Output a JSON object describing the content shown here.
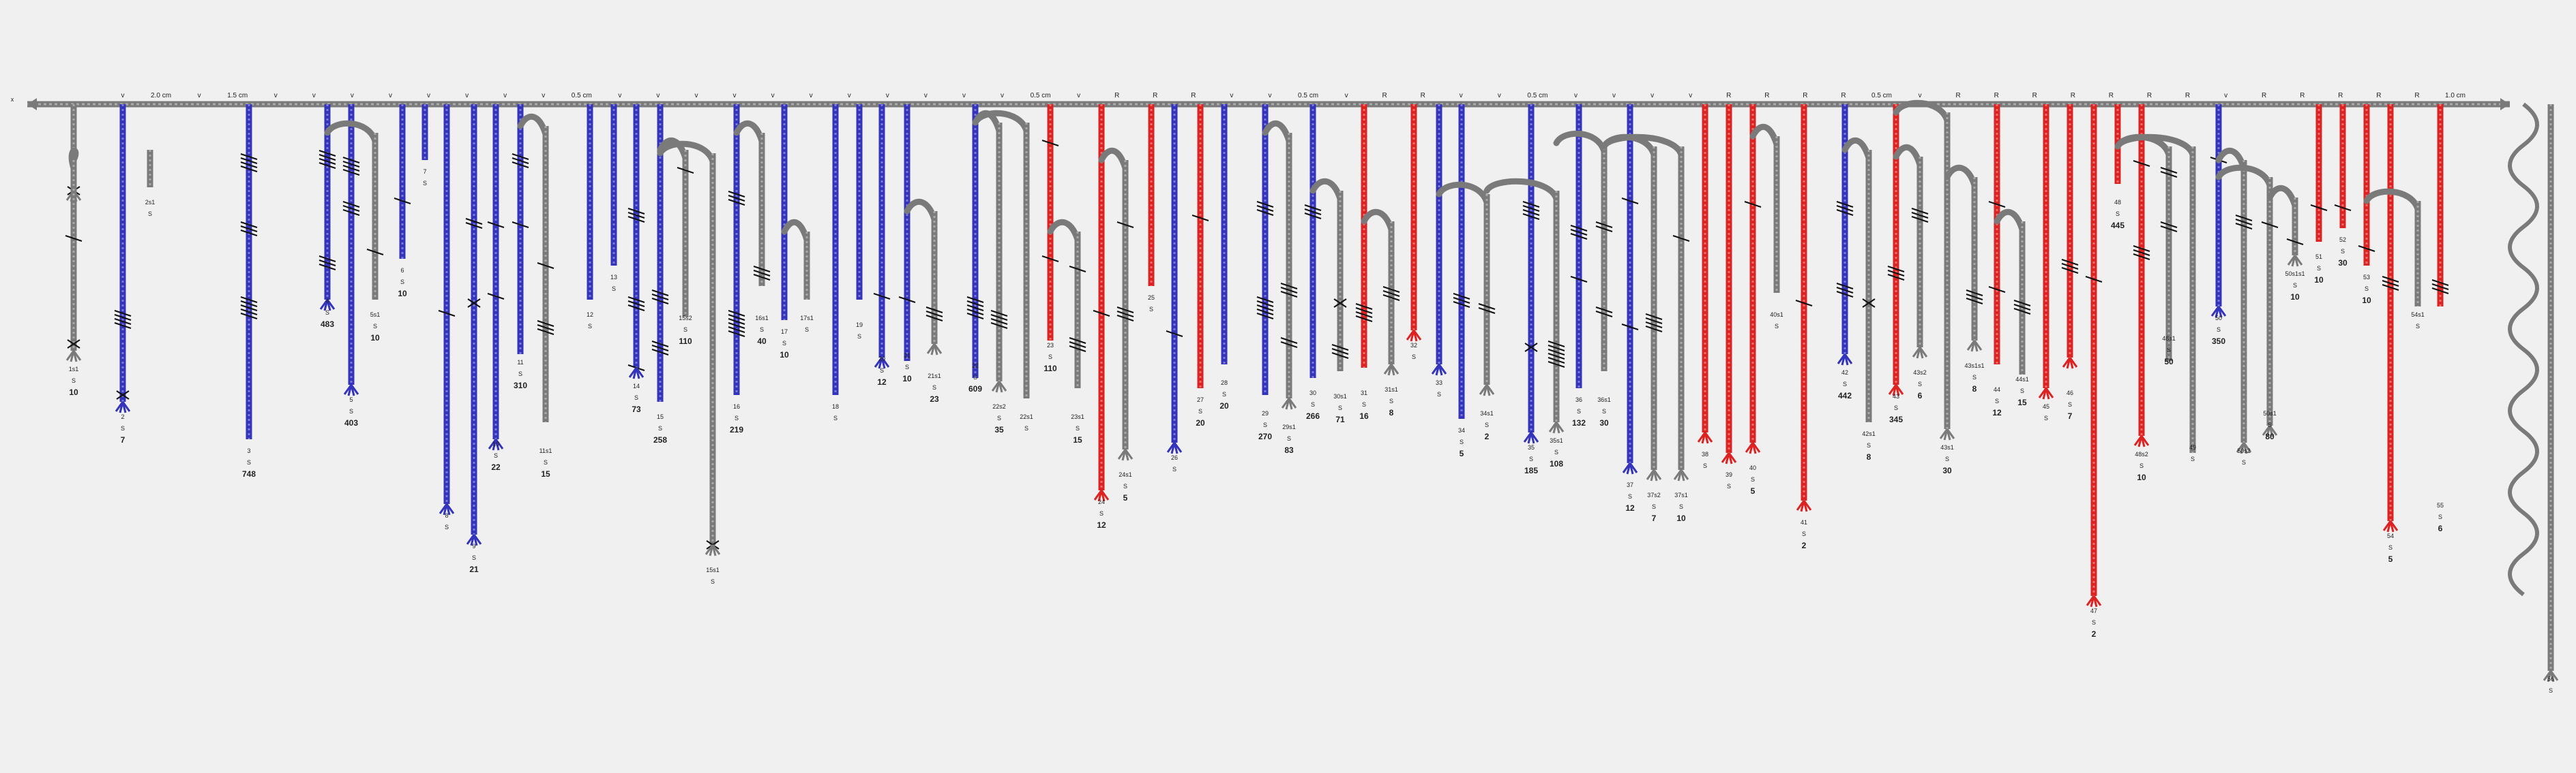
{
  "colors": {
    "background": "#f0f0f0",
    "gray": "#7a7a7a",
    "blue": "#3333bb",
    "red": "#dd2222",
    "knot": "#111111",
    "text": "#222222"
  },
  "primary": {
    "end_label": "x",
    "top_labels": [
      "v",
      "2.0 cm",
      "v",
      "1.5 cm",
      "v",
      "v",
      "v",
      "v",
      "v",
      "v",
      "v",
      "v",
      "0.5 cm",
      "v",
      "v",
      "v",
      "v",
      "v",
      "v",
      "v",
      "v",
      "v",
      "v",
      "v",
      "0.5 cm",
      "v",
      "R",
      "R",
      "R",
      "v",
      "v",
      "0.5 cm",
      "v",
      "R",
      "R",
      "v",
      "v",
      "0.5 cm",
      "v",
      "v",
      "v",
      "v",
      "R",
      "R",
      "R",
      "R",
      "0.5 cm",
      "v",
      "R",
      "R",
      "R",
      "R",
      "R",
      "R",
      "R",
      "v",
      "R",
      "R",
      "R",
      "R",
      "R",
      "1.0 cm"
    ]
  },
  "pendants": [
    {
      "label": "1",
      "s": "S",
      "value": ""
    },
    {
      "label": "1s1",
      "s": "S",
      "value": "10"
    },
    {
      "label": "2",
      "s": "S",
      "value": "7"
    },
    {
      "label": "2s1",
      "s": "S",
      "value": ""
    },
    {
      "label": "3",
      "s": "S",
      "value": "748"
    },
    {
      "label": "4",
      "s": "S",
      "value": "483"
    },
    {
      "label": "5",
      "s": "S",
      "value": "403"
    },
    {
      "label": "5s1",
      "s": "S",
      "value": "10"
    },
    {
      "label": "6",
      "s": "S",
      "value": "10"
    },
    {
      "label": "7",
      "s": "S",
      "value": ""
    },
    {
      "label": "8",
      "s": "S",
      "value": ""
    },
    {
      "label": "9",
      "s": "S",
      "value": "21"
    },
    {
      "label": "10",
      "s": "S",
      "value": "22"
    },
    {
      "label": "11",
      "s": "S",
      "value": "310"
    },
    {
      "label": "11s1",
      "s": "S",
      "value": "15"
    },
    {
      "label": "12",
      "s": "S",
      "value": ""
    },
    {
      "label": "13",
      "s": "S",
      "value": ""
    },
    {
      "label": "14",
      "s": "S",
      "value": "73"
    },
    {
      "label": "15",
      "s": "S",
      "value": "258"
    },
    {
      "label": "15s2",
      "s": "S",
      "value": "110"
    },
    {
      "label": "15s1",
      "s": "S",
      "value": ""
    },
    {
      "label": "16",
      "s": "S",
      "value": "219"
    },
    {
      "label": "16s1",
      "s": "S",
      "value": "40"
    },
    {
      "label": "17",
      "s": "S",
      "value": "10"
    },
    {
      "label": "17s1",
      "s": "S",
      "value": ""
    },
    {
      "label": "18",
      "s": "S",
      "value": ""
    },
    {
      "label": "19",
      "s": "S",
      "value": ""
    },
    {
      "label": "20",
      "s": "S",
      "value": "12"
    },
    {
      "label": "21",
      "s": "S",
      "value": "10"
    },
    {
      "label": "21s1",
      "s": "S",
      "value": "23"
    },
    {
      "label": "22",
      "s": "S",
      "value": "609"
    },
    {
      "label": "22s2",
      "s": "S",
      "value": "35"
    },
    {
      "label": "22s1",
      "s": "S",
      "value": ""
    },
    {
      "label": "23",
      "s": "S",
      "value": "110"
    },
    {
      "label": "23s1",
      "s": "S",
      "value": "15"
    },
    {
      "label": "24",
      "s": "S",
      "value": "12"
    },
    {
      "label": "24s1",
      "s": "S",
      "value": "5"
    },
    {
      "label": "25",
      "s": "S",
      "value": ""
    },
    {
      "label": "26",
      "s": "S",
      "value": ""
    },
    {
      "label": "27",
      "s": "S",
      "value": "20"
    },
    {
      "label": "28",
      "s": "S",
      "value": "20"
    },
    {
      "label": "29",
      "s": "S",
      "value": "270"
    },
    {
      "label": "29s1",
      "s": "S",
      "value": "83"
    },
    {
      "label": "30",
      "s": "S",
      "value": "266"
    },
    {
      "label": "30s1",
      "s": "S",
      "value": "71"
    },
    {
      "label": "31",
      "s": "S",
      "value": "16"
    },
    {
      "label": "31s1",
      "s": "S",
      "value": "8"
    },
    {
      "label": "32",
      "s": "S",
      "value": ""
    },
    {
      "label": "33",
      "s": "S",
      "value": ""
    },
    {
      "label": "34",
      "s": "S",
      "value": "5"
    },
    {
      "label": "34s1",
      "s": "S",
      "value": "2"
    },
    {
      "label": "35",
      "s": "S",
      "value": "185"
    },
    {
      "label": "35s1",
      "s": "S",
      "value": "108"
    },
    {
      "label": "36",
      "s": "S",
      "value": "132"
    },
    {
      "label": "36s1",
      "s": "S",
      "value": "30"
    },
    {
      "label": "37",
      "s": "S",
      "value": "12"
    },
    {
      "label": "37s2",
      "s": "S",
      "value": "7"
    },
    {
      "label": "37s1",
      "s": "S",
      "value": "10"
    },
    {
      "label": "38",
      "s": "S",
      "value": ""
    },
    {
      "label": "39",
      "s": "S",
      "value": ""
    },
    {
      "label": "40",
      "s": "S",
      "value": "5"
    },
    {
      "label": "40s1",
      "s": "S",
      "value": ""
    },
    {
      "label": "41",
      "s": "S",
      "value": "2"
    },
    {
      "label": "42",
      "s": "S",
      "value": "442"
    },
    {
      "label": "42s1",
      "s": "S",
      "value": "8"
    },
    {
      "label": "43",
      "s": "S",
      "value": "345"
    },
    {
      "label": "43s2",
      "s": "S",
      "value": "6"
    },
    {
      "label": "43s1",
      "s": "S",
      "value": "30"
    },
    {
      "label": "43s1s1",
      "s": "S",
      "value": "8"
    },
    {
      "label": "44",
      "s": "S",
      "value": "12"
    },
    {
      "label": "44s1",
      "s": "S",
      "value": "15"
    },
    {
      "label": "45",
      "s": "S",
      "value": ""
    },
    {
      "label": "46",
      "s": "S",
      "value": "7"
    },
    {
      "label": "47",
      "s": "S",
      "value": "2"
    },
    {
      "label": "48",
      "s": "S",
      "value": "445"
    },
    {
      "label": "48s2",
      "s": "S",
      "value": "10"
    },
    {
      "label": "48s1",
      "s": "S",
      "value": "50"
    },
    {
      "label": "49",
      "s": "S",
      "value": ""
    },
    {
      "label": "50",
      "s": "S",
      "value": "350"
    },
    {
      "label": "50s2",
      "s": "S",
      "value": ""
    },
    {
      "label": "50s1",
      "s": "S",
      "value": "80"
    },
    {
      "label": "50s1s1",
      "s": "S",
      "value": "10"
    },
    {
      "label": "51",
      "s": "S",
      "value": "10"
    },
    {
      "label": "52",
      "s": "S",
      "value": "30"
    },
    {
      "label": "53",
      "s": "S",
      "value": "10"
    },
    {
      "label": "54",
      "s": "S",
      "value": "5"
    },
    {
      "label": "54s1",
      "s": "S",
      "value": ""
    },
    {
      "label": "55",
      "s": "S",
      "value": "6"
    },
    {
      "label": "56",
      "s": "S",
      "value": ""
    }
  ]
}
